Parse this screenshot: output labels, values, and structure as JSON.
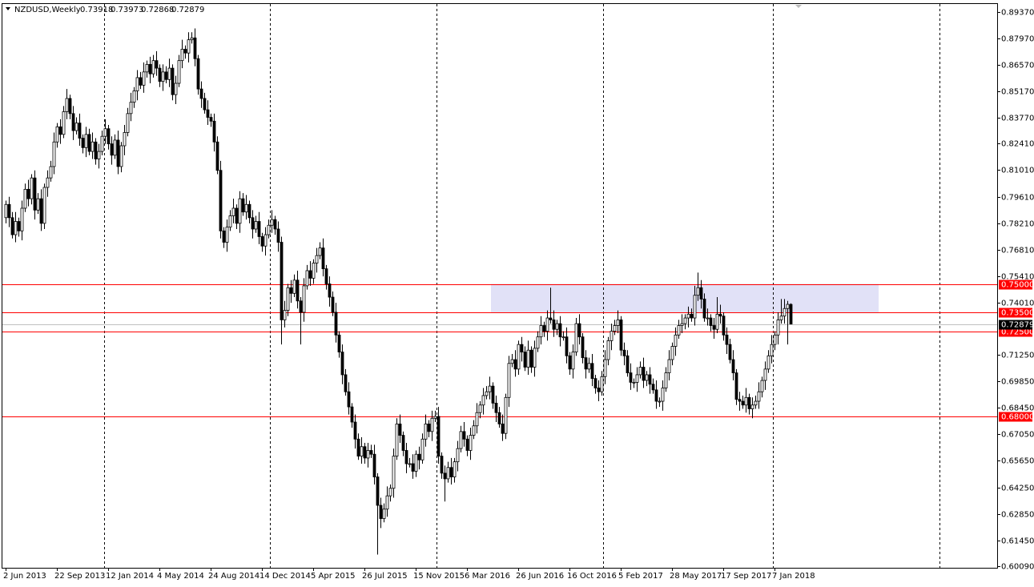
{
  "chart_data": {
    "type": "candlestick",
    "title": "NZDUSD,Weekly",
    "categories": [
      "2 Jun 2013",
      null,
      null,
      null,
      null,
      null,
      null,
      null,
      null,
      null,
      null,
      null,
      null,
      null,
      null,
      null,
      "22 Sep 2013",
      null,
      null,
      null,
      null,
      null,
      null,
      null,
      null,
      null,
      null,
      null,
      null,
      null,
      null,
      null,
      "12 Jan 2014",
      null,
      null,
      null,
      null,
      null,
      null,
      null,
      null,
      null,
      null,
      null,
      null,
      null,
      null,
      null,
      "4 May 2014",
      null,
      null,
      null,
      null,
      null,
      null,
      null,
      null,
      null,
      null,
      null,
      null,
      null,
      null,
      null,
      "24 Aug 2014",
      null,
      null,
      null,
      null,
      null,
      null,
      null,
      null,
      null,
      null,
      null,
      null,
      null,
      null,
      null,
      "14 Dec 2014",
      null,
      null,
      null,
      null,
      null,
      null,
      null,
      null,
      null,
      null,
      null,
      null,
      null,
      null,
      null,
      "5 Apr 2015",
      null,
      null,
      null,
      null,
      null,
      null,
      null,
      null,
      null,
      null,
      null,
      null,
      null,
      null,
      null,
      "26 Jul 2015",
      null,
      null,
      null,
      null,
      null,
      null,
      null,
      null,
      null,
      null,
      null,
      null,
      null,
      null,
      null,
      "15 Nov 2015",
      null,
      null,
      null,
      null,
      null,
      null,
      null,
      null,
      null,
      null,
      null,
      null,
      null,
      null,
      null,
      "6 Mar 2016",
      null,
      null,
      null,
      null,
      null,
      null,
      null,
      null,
      null,
      null,
      null,
      null,
      null,
      null,
      null,
      "26 Jun 2016",
      null,
      null,
      null,
      null,
      null,
      null,
      null,
      null,
      null,
      null,
      null,
      null,
      null,
      null,
      null,
      "16 Oct 2016",
      null,
      null,
      null,
      null,
      null,
      null,
      null,
      null,
      null,
      null,
      null,
      null,
      null,
      null,
      null,
      "5 Feb 2017",
      null,
      null,
      null,
      null,
      null,
      null,
      null,
      null,
      null,
      null,
      null,
      null,
      null,
      null,
      null,
      "28 May 2017",
      null,
      null,
      null,
      null,
      null,
      null,
      null,
      null,
      null,
      null,
      null,
      null,
      null,
      null,
      null,
      "17 Sep 2017",
      null,
      null,
      null,
      null,
      null,
      null,
      null,
      null,
      null,
      null,
      null,
      null,
      null,
      null,
      null,
      "7 Jan 2018",
      null,
      null,
      null,
      null,
      null
    ],
    "open": [
      0.785,
      0.792,
      0.785,
      0.776,
      0.783,
      0.778,
      0.79,
      0.8,
      0.795,
      0.806,
      0.789,
      0.795,
      0.782,
      0.801,
      0.806,
      0.812,
      0.825,
      0.833,
      0.829,
      0.841,
      0.848,
      0.84,
      0.831,
      0.835,
      0.827,
      0.822,
      0.829,
      0.82,
      0.825,
      0.816,
      0.82,
      0.828,
      0.832,
      0.824,
      0.818,
      0.826,
      0.812,
      0.823,
      0.83,
      0.84,
      0.846,
      0.852,
      0.859,
      0.855,
      0.862,
      0.866,
      0.861,
      0.868,
      0.864,
      0.857,
      0.862,
      0.858,
      0.864,
      0.85,
      0.856,
      0.868,
      0.874,
      0.872,
      0.879,
      0.88,
      0.869,
      0.853,
      0.848,
      0.842,
      0.838,
      0.836,
      0.825,
      0.81,
      0.778,
      0.772,
      0.78,
      0.786,
      0.79,
      0.782,
      0.795,
      0.788,
      0.792,
      0.785,
      0.779,
      0.783,
      0.775,
      0.77,
      0.776,
      0.781,
      0.784,
      0.779,
      0.772,
      0.731,
      0.736,
      0.748,
      0.745,
      0.752,
      0.741,
      0.735,
      0.749,
      0.757,
      0.753,
      0.761,
      0.765,
      0.769,
      0.758,
      0.75,
      0.743,
      0.735,
      0.723,
      0.714,
      0.702,
      0.693,
      0.685,
      0.677,
      0.668,
      0.659,
      0.664,
      0.658,
      0.662,
      0.66,
      0.648,
      0.633,
      0.626,
      0.631,
      0.638,
      0.642,
      0.659,
      0.676,
      0.67,
      0.662,
      0.655,
      0.655,
      0.651,
      0.66,
      0.657,
      0.668,
      0.676,
      0.672,
      0.679,
      0.68,
      0.659,
      0.65,
      0.647,
      0.653,
      0.648,
      0.656,
      0.663,
      0.672,
      0.668,
      0.662,
      0.67,
      0.675,
      0.682,
      0.686,
      0.691,
      0.693,
      0.696,
      0.687,
      0.682,
      0.676,
      0.671,
      0.69,
      0.708,
      0.71,
      0.705,
      0.718,
      0.714,
      0.706,
      0.715,
      0.706,
      0.716,
      0.722,
      0.728,
      0.725,
      0.732,
      0.731,
      0.726,
      0.729,
      0.722,
      0.722,
      0.712,
      0.705,
      0.714,
      0.729,
      0.722,
      0.711,
      0.705,
      0.708,
      0.7,
      0.695,
      0.693,
      0.701,
      0.71,
      0.72,
      0.725,
      0.728,
      0.731,
      0.715,
      0.712,
      0.703,
      0.698,
      0.698,
      0.702,
      0.706,
      0.699,
      0.702,
      0.697,
      0.694,
      0.688,
      0.688,
      0.695,
      0.703,
      0.71,
      0.717,
      0.723,
      0.728,
      0.729,
      0.732,
      0.734,
      0.732,
      0.744,
      0.748,
      0.742,
      0.732,
      0.732,
      0.728,
      0.726,
      0.734,
      0.733,
      0.723,
      0.718,
      0.71,
      0.703,
      0.689,
      0.688,
      0.686,
      0.69,
      0.684,
      0.686,
      0.688,
      0.693,
      0.699,
      0.705,
      0.712,
      0.718,
      0.723,
      0.731,
      0.733,
      0.737,
      0.73918
    ],
    "high": [
      0.794,
      0.796,
      0.788,
      0.788,
      0.785,
      0.794,
      0.803,
      0.805,
      0.808,
      0.81,
      0.798,
      0.8,
      0.803,
      0.81,
      0.815,
      0.83,
      0.835,
      0.837,
      0.844,
      0.853,
      0.85,
      0.844,
      0.838,
      0.84,
      0.829,
      0.833,
      0.832,
      0.83,
      0.827,
      0.824,
      0.831,
      0.837,
      0.834,
      0.828,
      0.829,
      0.831,
      0.825,
      0.834,
      0.843,
      0.851,
      0.854,
      0.863,
      0.862,
      0.867,
      0.868,
      0.87,
      0.871,
      0.873,
      0.866,
      0.866,
      0.865,
      0.869,
      0.866,
      0.86,
      0.871,
      0.879,
      0.876,
      0.883,
      0.883,
      0.885,
      0.871,
      0.857,
      0.851,
      0.847,
      0.84,
      0.84,
      0.828,
      0.815,
      0.78,
      0.784,
      0.789,
      0.795,
      0.792,
      0.799,
      0.798,
      0.797,
      0.794,
      0.789,
      0.786,
      0.788,
      0.777,
      0.78,
      0.784,
      0.789,
      0.786,
      0.783,
      0.775,
      0.741,
      0.75,
      0.752,
      0.755,
      0.757,
      0.743,
      0.753,
      0.76,
      0.762,
      0.763,
      0.769,
      0.772,
      0.774,
      0.76,
      0.754,
      0.746,
      0.74,
      0.725,
      0.718,
      0.705,
      0.698,
      0.687,
      0.681,
      0.671,
      0.669,
      0.666,
      0.666,
      0.665,
      0.665,
      0.65,
      0.637,
      0.634,
      0.643,
      0.644,
      0.663,
      0.679,
      0.681,
      0.672,
      0.666,
      0.658,
      0.66,
      0.662,
      0.664,
      0.671,
      0.681,
      0.678,
      0.683,
      0.683,
      0.685,
      0.661,
      0.654,
      0.656,
      0.658,
      0.658,
      0.667,
      0.675,
      0.677,
      0.67,
      0.674,
      0.678,
      0.687,
      0.688,
      0.695,
      0.696,
      0.701,
      0.698,
      0.691,
      0.685,
      0.681,
      0.692,
      0.712,
      0.713,
      0.715,
      0.72,
      0.722,
      0.717,
      0.72,
      0.717,
      0.72,
      0.725,
      0.733,
      0.73,
      0.736,
      0.748,
      0.736,
      0.731,
      0.733,
      0.725,
      0.727,
      0.714,
      0.718,
      0.732,
      0.734,
      0.724,
      0.715,
      0.711,
      0.713,
      0.702,
      0.699,
      0.704,
      0.715,
      0.722,
      0.729,
      0.731,
      0.736,
      0.733,
      0.719,
      0.715,
      0.708,
      0.7,
      0.706,
      0.709,
      0.711,
      0.704,
      0.706,
      0.7,
      0.699,
      0.69,
      0.699,
      0.706,
      0.715,
      0.719,
      0.727,
      0.731,
      0.734,
      0.734,
      0.738,
      0.737,
      0.749,
      0.756,
      0.752,
      0.745,
      0.737,
      0.734,
      0.732,
      0.743,
      0.739,
      0.735,
      0.727,
      0.721,
      0.715,
      0.705,
      0.693,
      0.691,
      0.695,
      0.692,
      0.69,
      0.691,
      0.698,
      0.701,
      0.709,
      0.715,
      0.723,
      0.725,
      0.735,
      0.742,
      0.742,
      0.741,
      0.73973
    ],
    "low": [
      0.782,
      0.78,
      0.774,
      0.772,
      0.775,
      0.773,
      0.788,
      0.791,
      0.792,
      0.784,
      0.787,
      0.778,
      0.779,
      0.796,
      0.804,
      0.808,
      0.822,
      0.824,
      0.827,
      0.837,
      0.837,
      0.826,
      0.829,
      0.823,
      0.819,
      0.817,
      0.818,
      0.816,
      0.813,
      0.811,
      0.818,
      0.824,
      0.821,
      0.813,
      0.816,
      0.808,
      0.809,
      0.818,
      0.828,
      0.836,
      0.843,
      0.847,
      0.853,
      0.851,
      0.859,
      0.856,
      0.859,
      0.86,
      0.854,
      0.852,
      0.856,
      0.854,
      0.847,
      0.845,
      0.854,
      0.864,
      0.869,
      0.867,
      0.877,
      0.865,
      0.85,
      0.843,
      0.84,
      0.834,
      0.833,
      0.82,
      0.808,
      0.774,
      0.769,
      0.767,
      0.778,
      0.782,
      0.779,
      0.777,
      0.786,
      0.784,
      0.782,
      0.774,
      0.777,
      0.771,
      0.767,
      0.765,
      0.774,
      0.777,
      0.776,
      0.767,
      0.718,
      0.727,
      0.733,
      0.74,
      0.743,
      0.737,
      0.718,
      0.73,
      0.747,
      0.749,
      0.75,
      0.756,
      0.763,
      0.754,
      0.747,
      0.738,
      0.733,
      0.719,
      0.711,
      0.697,
      0.691,
      0.681,
      0.674,
      0.663,
      0.657,
      0.655,
      0.655,
      0.653,
      0.658,
      0.644,
      0.607,
      0.621,
      0.624,
      0.627,
      0.635,
      0.637,
      0.657,
      0.666,
      0.659,
      0.65,
      0.653,
      0.647,
      0.648,
      0.652,
      0.655,
      0.664,
      0.669,
      0.667,
      0.677,
      0.655,
      0.647,
      0.635,
      0.645,
      0.644,
      0.645,
      0.651,
      0.661,
      0.664,
      0.659,
      0.657,
      0.668,
      0.671,
      0.679,
      0.681,
      0.689,
      0.689,
      0.684,
      0.677,
      0.674,
      0.667,
      0.668,
      0.685,
      0.706,
      0.701,
      0.702,
      0.709,
      0.704,
      0.702,
      0.703,
      0.701,
      0.714,
      0.718,
      0.722,
      0.72,
      0.729,
      0.722,
      0.723,
      0.717,
      0.72,
      0.708,
      0.702,
      0.7,
      0.712,
      0.718,
      0.708,
      0.7,
      0.703,
      0.696,
      0.692,
      0.688,
      0.691,
      0.697,
      0.707,
      0.715,
      0.723,
      0.724,
      0.712,
      0.707,
      0.701,
      0.694,
      0.695,
      0.693,
      0.7,
      0.695,
      0.696,
      0.692,
      0.692,
      0.684,
      0.685,
      0.683,
      0.693,
      0.699,
      0.707,
      0.712,
      0.721,
      0.724,
      0.726,
      0.727,
      0.73,
      0.728,
      0.741,
      0.737,
      0.73,
      0.728,
      0.725,
      0.721,
      0.724,
      0.729,
      0.72,
      0.713,
      0.708,
      0.699,
      0.686,
      0.683,
      0.684,
      0.682,
      0.681,
      0.679,
      0.684,
      0.684,
      0.69,
      0.694,
      0.703,
      0.708,
      0.715,
      0.718,
      0.729,
      0.729,
      0.718,
      0.72868
    ],
    "close": [
      0.792,
      0.785,
      0.776,
      0.783,
      0.778,
      0.79,
      0.8,
      0.795,
      0.806,
      0.789,
      0.795,
      0.782,
      0.801,
      0.806,
      0.812,
      0.825,
      0.833,
      0.829,
      0.841,
      0.848,
      0.84,
      0.831,
      0.835,
      0.827,
      0.822,
      0.829,
      0.82,
      0.825,
      0.816,
      0.82,
      0.828,
      0.832,
      0.824,
      0.818,
      0.826,
      0.812,
      0.823,
      0.83,
      0.84,
      0.846,
      0.852,
      0.859,
      0.855,
      0.862,
      0.866,
      0.861,
      0.868,
      0.864,
      0.857,
      0.862,
      0.858,
      0.864,
      0.85,
      0.856,
      0.868,
      0.874,
      0.872,
      0.879,
      0.88,
      0.869,
      0.853,
      0.848,
      0.842,
      0.838,
      0.836,
      0.825,
      0.81,
      0.778,
      0.772,
      0.78,
      0.786,
      0.79,
      0.782,
      0.795,
      0.788,
      0.792,
      0.785,
      0.779,
      0.783,
      0.775,
      0.77,
      0.776,
      0.781,
      0.784,
      0.779,
      0.772,
      0.731,
      0.736,
      0.748,
      0.745,
      0.752,
      0.741,
      0.735,
      0.749,
      0.757,
      0.753,
      0.761,
      0.765,
      0.769,
      0.758,
      0.75,
      0.743,
      0.735,
      0.723,
      0.714,
      0.702,
      0.693,
      0.685,
      0.677,
      0.668,
      0.659,
      0.664,
      0.658,
      0.662,
      0.66,
      0.648,
      0.633,
      0.626,
      0.631,
      0.638,
      0.642,
      0.659,
      0.676,
      0.67,
      0.662,
      0.655,
      0.655,
      0.651,
      0.66,
      0.657,
      0.668,
      0.676,
      0.672,
      0.679,
      0.68,
      0.659,
      0.65,
      0.647,
      0.653,
      0.648,
      0.656,
      0.663,
      0.672,
      0.668,
      0.662,
      0.67,
      0.675,
      0.682,
      0.686,
      0.691,
      0.693,
      0.696,
      0.687,
      0.682,
      0.676,
      0.671,
      0.69,
      0.708,
      0.71,
      0.705,
      0.718,
      0.714,
      0.706,
      0.715,
      0.706,
      0.716,
      0.722,
      0.728,
      0.725,
      0.732,
      0.731,
      0.726,
      0.729,
      0.722,
      0.722,
      0.712,
      0.705,
      0.714,
      0.729,
      0.722,
      0.711,
      0.705,
      0.708,
      0.7,
      0.695,
      0.693,
      0.701,
      0.71,
      0.72,
      0.725,
      0.728,
      0.731,
      0.715,
      0.712,
      0.703,
      0.698,
      0.698,
      0.702,
      0.706,
      0.699,
      0.702,
      0.697,
      0.694,
      0.688,
      0.688,
      0.695,
      0.703,
      0.71,
      0.717,
      0.723,
      0.728,
      0.729,
      0.732,
      0.734,
      0.732,
      0.744,
      0.748,
      0.742,
      0.732,
      0.732,
      0.728,
      0.726,
      0.734,
      0.733,
      0.723,
      0.718,
      0.71,
      0.703,
      0.689,
      0.688,
      0.686,
      0.69,
      0.684,
      0.686,
      0.688,
      0.693,
      0.699,
      0.705,
      0.712,
      0.718,
      0.723,
      0.731,
      0.733,
      0.737,
      0.7392,
      0.72879
    ],
    "up_color": "#ffffff",
    "down_color": "#000000",
    "ylim": [
      0.6,
      0.8979
    ],
    "yticks": [
      {
        "value": 0.8937,
        "label": "0.89370"
      },
      {
        "value": 0.8797,
        "label": "0.87970"
      },
      {
        "value": 0.8657,
        "label": "0.86570"
      },
      {
        "value": 0.8517,
        "label": "0.85170"
      },
      {
        "value": 0.8377,
        "label": "0.83770"
      },
      {
        "value": 0.8241,
        "label": "0.82410"
      },
      {
        "value": 0.8101,
        "label": "0.81010"
      },
      {
        "value": 0.7961,
        "label": "0.79610"
      },
      {
        "value": 0.7821,
        "label": "0.78210"
      },
      {
        "value": 0.7681,
        "label": "0.76810"
      },
      {
        "value": 0.7541,
        "label": "0.75410"
      },
      {
        "value": 0.7401,
        "label": "0.74010"
      },
      {
        "value": 0.7125,
        "label": "0.71250"
      },
      {
        "value": 0.6985,
        "label": "0.69850"
      },
      {
        "value": 0.6845,
        "label": "0.68450"
      },
      {
        "value": 0.6705,
        "label": "0.67050"
      },
      {
        "value": 0.6565,
        "label": "0.65650"
      },
      {
        "value": 0.6425,
        "label": "0.64250"
      },
      {
        "value": 0.6285,
        "label": "0.62850"
      },
      {
        "value": 0.6145,
        "label": "0.61450"
      },
      {
        "value": 0.6009,
        "label": "0.60090"
      }
    ],
    "levels": [
      {
        "value": 0.75,
        "label": "0.75000"
      },
      {
        "value": 0.735,
        "label": "0.73500"
      },
      {
        "value": 0.725,
        "label": "0.72500"
      },
      {
        "value": 0.68,
        "label": "0.68000"
      }
    ],
    "level_color": "#ff0000",
    "zone": {
      "low": 0.735,
      "high": 0.75,
      "color": "#e1e1f7"
    }
  }
}
